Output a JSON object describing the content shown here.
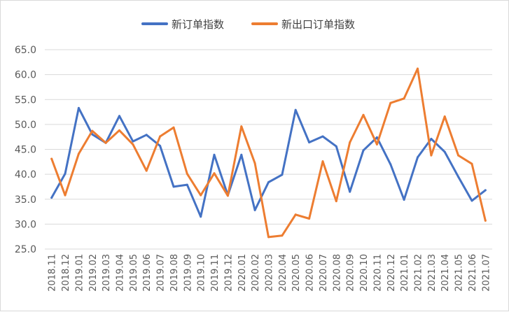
{
  "chart_data": {
    "type": "line",
    "title": "",
    "xlabel": "",
    "ylabel": "",
    "ylim": [
      25,
      65
    ],
    "yticks": [
      "25.0",
      "30.0",
      "35.0",
      "40.0",
      "45.0",
      "50.0",
      "55.0",
      "60.0",
      "65.0"
    ],
    "grid": true,
    "legend_position": "top",
    "categories": [
      "2018.11",
      "2018.12",
      "2019.01",
      "2019.02",
      "2019.03",
      "2019.04",
      "2019.05",
      "2019.06",
      "2019.07",
      "2019.08",
      "2019.09",
      "2019.10",
      "2019.11",
      "2019.12",
      "2020.01",
      "2020.02",
      "2020.03",
      "2020.04",
      "2020.05",
      "2020.06",
      "2020.07",
      "2020.08",
      "2020.09",
      "2020.10",
      "2020.11",
      "2020.12",
      "2021.01",
      "2021.02",
      "2021.03",
      "2021.04",
      "2021.05",
      "2021.06",
      "2021.07"
    ],
    "series": [
      {
        "name": "新订单指数",
        "color": "#4472c4",
        "values": [
          35.3,
          40.1,
          53.3,
          48.0,
          46.3,
          51.7,
          46.6,
          47.9,
          45.7,
          37.5,
          37.9,
          31.5,
          43.9,
          35.8,
          43.9,
          32.8,
          38.4,
          39.9,
          52.9,
          46.4,
          47.6,
          45.6,
          36.5,
          44.8,
          47.4,
          42.0,
          34.9,
          43.4,
          47.1,
          44.5,
          39.5,
          34.7,
          36.8
        ]
      },
      {
        "name": "新出口订单指数",
        "color": "#ed7d31",
        "values": [
          43.1,
          35.8,
          44.1,
          48.7,
          46.3,
          48.8,
          46.0,
          40.7,
          47.6,
          49.4,
          40.1,
          35.8,
          40.2,
          35.7,
          49.6,
          42.2,
          27.4,
          27.7,
          31.9,
          31.1,
          42.6,
          34.6,
          46.4,
          51.9,
          46.0,
          54.3,
          55.2,
          61.2,
          43.8,
          51.6,
          43.8,
          42.1,
          30.7
        ]
      }
    ]
  }
}
